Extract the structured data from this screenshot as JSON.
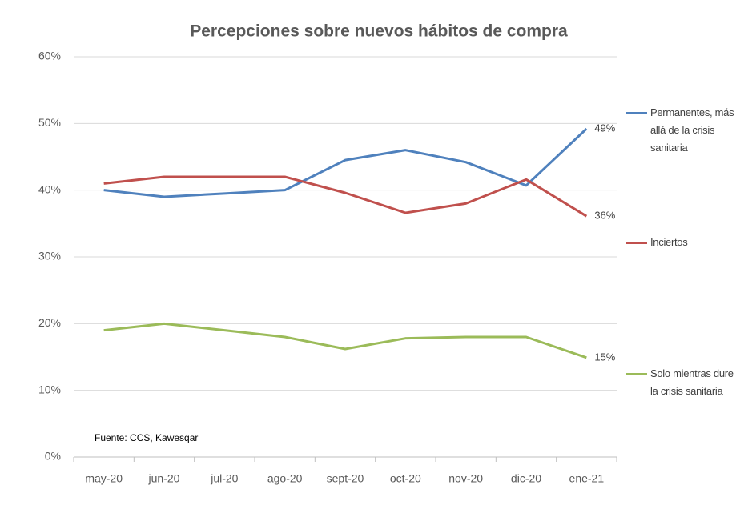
{
  "chart_data": {
    "type": "line",
    "title": "Percepciones sobre nuevos hábitos de compra",
    "categories": [
      "may-20",
      "jun-20",
      "jul-20",
      "ago-20",
      "sept-20",
      "oct-20",
      "nov-20",
      "dic-20",
      "ene-21"
    ],
    "series": [
      {
        "name": "Permanentes, más allá de la crisis sanitaria",
        "color": "#4f81bd",
        "values": [
          40,
          39,
          39.5,
          40,
          44.5,
          46,
          44.2,
          40.7,
          49.2
        ],
        "value_labels": [
          null,
          null,
          null,
          null,
          null,
          null,
          null,
          null,
          "49%"
        ]
      },
      {
        "name": "Inciertos",
        "color": "#c0504d",
        "values": [
          41,
          42,
          42,
          42,
          39.6,
          36.6,
          38,
          41.6,
          36.1
        ],
        "value_labels": [
          null,
          null,
          null,
          null,
          null,
          null,
          null,
          null,
          "36%"
        ]
      },
      {
        "name": "Solo mientras dure la crisis sanitaria",
        "color": "#9bbb59",
        "values": [
          19,
          20,
          19,
          18,
          16.2,
          17.8,
          18,
          18,
          14.9
        ],
        "value_labels": [
          null,
          null,
          null,
          null,
          null,
          null,
          null,
          null,
          "15%"
        ]
      }
    ],
    "ylim": [
      0,
      60
    ],
    "yticks": [
      {
        "value": 0,
        "label": "0%"
      },
      {
        "value": 10,
        "label": "10%"
      },
      {
        "value": 20,
        "label": "20%"
      },
      {
        "value": 30,
        "label": "30%"
      },
      {
        "value": 40,
        "label": "40%"
      },
      {
        "value": 50,
        "label": "50%"
      },
      {
        "value": 60,
        "label": "60%"
      }
    ],
    "grid": true,
    "legend": "right",
    "source": "Fuente: CCS, Kawesqar"
  }
}
